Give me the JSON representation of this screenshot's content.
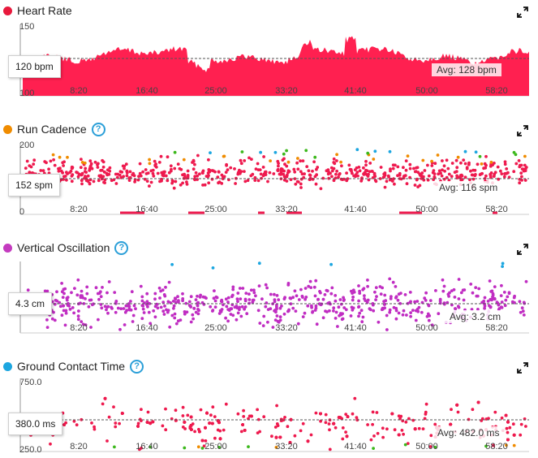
{
  "x_ticks": [
    "8:20",
    "16:40",
    "25:00",
    "33:20",
    "41:40",
    "50:00",
    "58:20"
  ],
  "panels": [
    {
      "id": "hr",
      "title": "Heart Rate",
      "dot_color": "#e8193c",
      "has_help": false,
      "y_top": "150",
      "y_bottom": "100",
      "current": "120 bpm",
      "avg": "Avg: 128 bpm",
      "type": "area",
      "color": "#ff2050"
    },
    {
      "id": "cadence",
      "title": "Run Cadence",
      "dot_color": "#f08c00",
      "has_help": true,
      "y_top": "200",
      "y_bottom": "0",
      "current": "152 spm",
      "avg": "Avg: 116 spm",
      "type": "scatter",
      "color": "#ee1a4e"
    },
    {
      "id": "vo",
      "title": "Vertical Oscillation",
      "dot_color": "#c43bbf",
      "has_help": true,
      "y_top": "",
      "y_bottom": "",
      "current": "4.3 cm",
      "avg": "Avg: 3.2 cm",
      "type": "scatter",
      "color": "#c02dc2"
    },
    {
      "id": "gct",
      "title": "Ground Contact Time",
      "dot_color": "#1ca6e0",
      "has_help": true,
      "y_top": "750.0",
      "y_bottom": "250.0",
      "current": "380.0 ms",
      "avg": "Avg: 482.0 ms",
      "type": "scatter",
      "color": "#ee1a4e"
    }
  ],
  "icons": {
    "help": "help-circle-icon",
    "expand": "expand-arrows-icon"
  },
  "help_glyph": "?"
}
